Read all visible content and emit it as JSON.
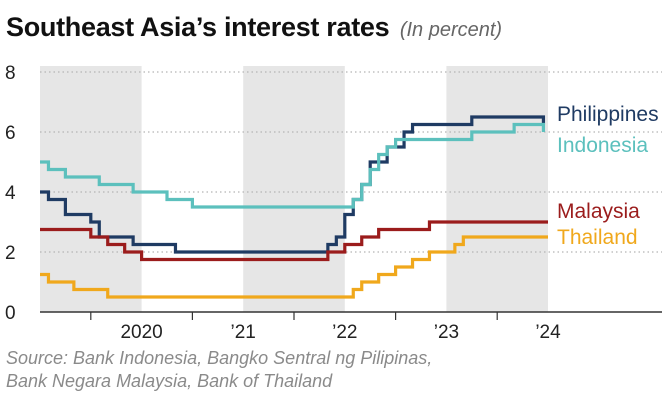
{
  "title": "Southeast Asia’s interest rates",
  "subtitle": "(In percent)",
  "source": [
    "Source: Bank Indonesia, Bangko Sentral ng Pilipinas,",
    "Bank Negara Malaysia, Bank of Thailand"
  ],
  "chart_data": {
    "type": "line",
    "title": "Southeast Asia’s interest rates",
    "subtitle": "(In percent)",
    "xlabel": "",
    "ylabel": "",
    "xlim": [
      "2019-07-01",
      "2024-07-01"
    ],
    "ylim": [
      0,
      8
    ],
    "y_ticks": [
      0,
      2,
      4,
      6,
      8
    ],
    "x_ticks": [
      {
        "label": "2020",
        "date": "2020-01-01"
      },
      {
        "label": "’21",
        "date": "2021-01-01"
      },
      {
        "label": "’22",
        "date": "2022-01-01"
      },
      {
        "label": "’23",
        "date": "2023-01-01"
      },
      {
        "label": "’24",
        "date": "2024-01-01"
      }
    ],
    "shaded_years": [
      {
        "start": "2019-07-01",
        "end": "2020-07-01"
      },
      {
        "start": "2021-07-01",
        "end": "2022-07-01"
      },
      {
        "start": "2023-07-01",
        "end": "2024-07-01"
      }
    ],
    "grid": "horizontal dotted",
    "legend": "labels at right end of each line",
    "step": true,
    "series": [
      {
        "name": "Philippines",
        "color": "#1f3b63",
        "points": [
          [
            "2019-07-01",
            4.0
          ],
          [
            "2019-08-01",
            3.75
          ],
          [
            "2019-10-01",
            3.25
          ],
          [
            "2020-01-01",
            3.0
          ],
          [
            "2020-02-01",
            2.5
          ],
          [
            "2020-06-01",
            2.25
          ],
          [
            "2020-11-01",
            2.0
          ],
          [
            "2022-05-01",
            2.25
          ],
          [
            "2022-06-01",
            2.5
          ],
          [
            "2022-07-01",
            3.25
          ],
          [
            "2022-08-01",
            3.75
          ],
          [
            "2022-09-01",
            4.25
          ],
          [
            "2022-10-01",
            5.0
          ],
          [
            "2022-12-01",
            5.5
          ],
          [
            "2023-02-01",
            6.0
          ],
          [
            "2023-03-01",
            6.25
          ],
          [
            "2023-10-01",
            6.5
          ],
          [
            "2024-06-15",
            6.5
          ],
          [
            "2024-06-15",
            6.25
          ]
        ]
      },
      {
        "name": "Indonesia",
        "color": "#5cc0bd",
        "points": [
          [
            "2019-07-01",
            5.0
          ],
          [
            "2019-08-01",
            4.75
          ],
          [
            "2019-10-01",
            4.5
          ],
          [
            "2020-02-01",
            4.25
          ],
          [
            "2020-06-01",
            4.0
          ],
          [
            "2020-10-01",
            3.75
          ],
          [
            "2021-01-01",
            3.5
          ],
          [
            "2022-08-01",
            3.75
          ],
          [
            "2022-09-01",
            4.25
          ],
          [
            "2022-10-01",
            4.75
          ],
          [
            "2022-11-01",
            5.25
          ],
          [
            "2022-12-01",
            5.5
          ],
          [
            "2023-01-01",
            5.75
          ],
          [
            "2023-10-01",
            6.0
          ],
          [
            "2024-03-01",
            6.25
          ],
          [
            "2024-06-15",
            6.25
          ],
          [
            "2024-06-15",
            6.0
          ]
        ]
      },
      {
        "name": "Malaysia",
        "color": "#9b1c1c",
        "points": [
          [
            "2019-07-01",
            2.75
          ],
          [
            "2020-01-01",
            2.5
          ],
          [
            "2020-03-01",
            2.25
          ],
          [
            "2020-05-01",
            2.0
          ],
          [
            "2020-07-01",
            1.75
          ],
          [
            "2022-05-01",
            2.0
          ],
          [
            "2022-07-01",
            2.25
          ],
          [
            "2022-09-01",
            2.5
          ],
          [
            "2022-11-01",
            2.75
          ],
          [
            "2023-05-01",
            3.0
          ],
          [
            "2024-07-01",
            3.0
          ]
        ]
      },
      {
        "name": "Thailand",
        "color": "#f0a81c",
        "points": [
          [
            "2019-07-01",
            1.25
          ],
          [
            "2019-08-01",
            1.0
          ],
          [
            "2019-11-01",
            0.75
          ],
          [
            "2020-03-01",
            0.5
          ],
          [
            "2022-08-01",
            0.75
          ],
          [
            "2022-09-01",
            1.0
          ],
          [
            "2022-11-01",
            1.25
          ],
          [
            "2023-01-01",
            1.5
          ],
          [
            "2023-03-01",
            1.75
          ],
          [
            "2023-05-01",
            2.0
          ],
          [
            "2023-08-01",
            2.25
          ],
          [
            "2023-09-01",
            2.5
          ],
          [
            "2024-07-01",
            2.5
          ]
        ]
      }
    ]
  }
}
